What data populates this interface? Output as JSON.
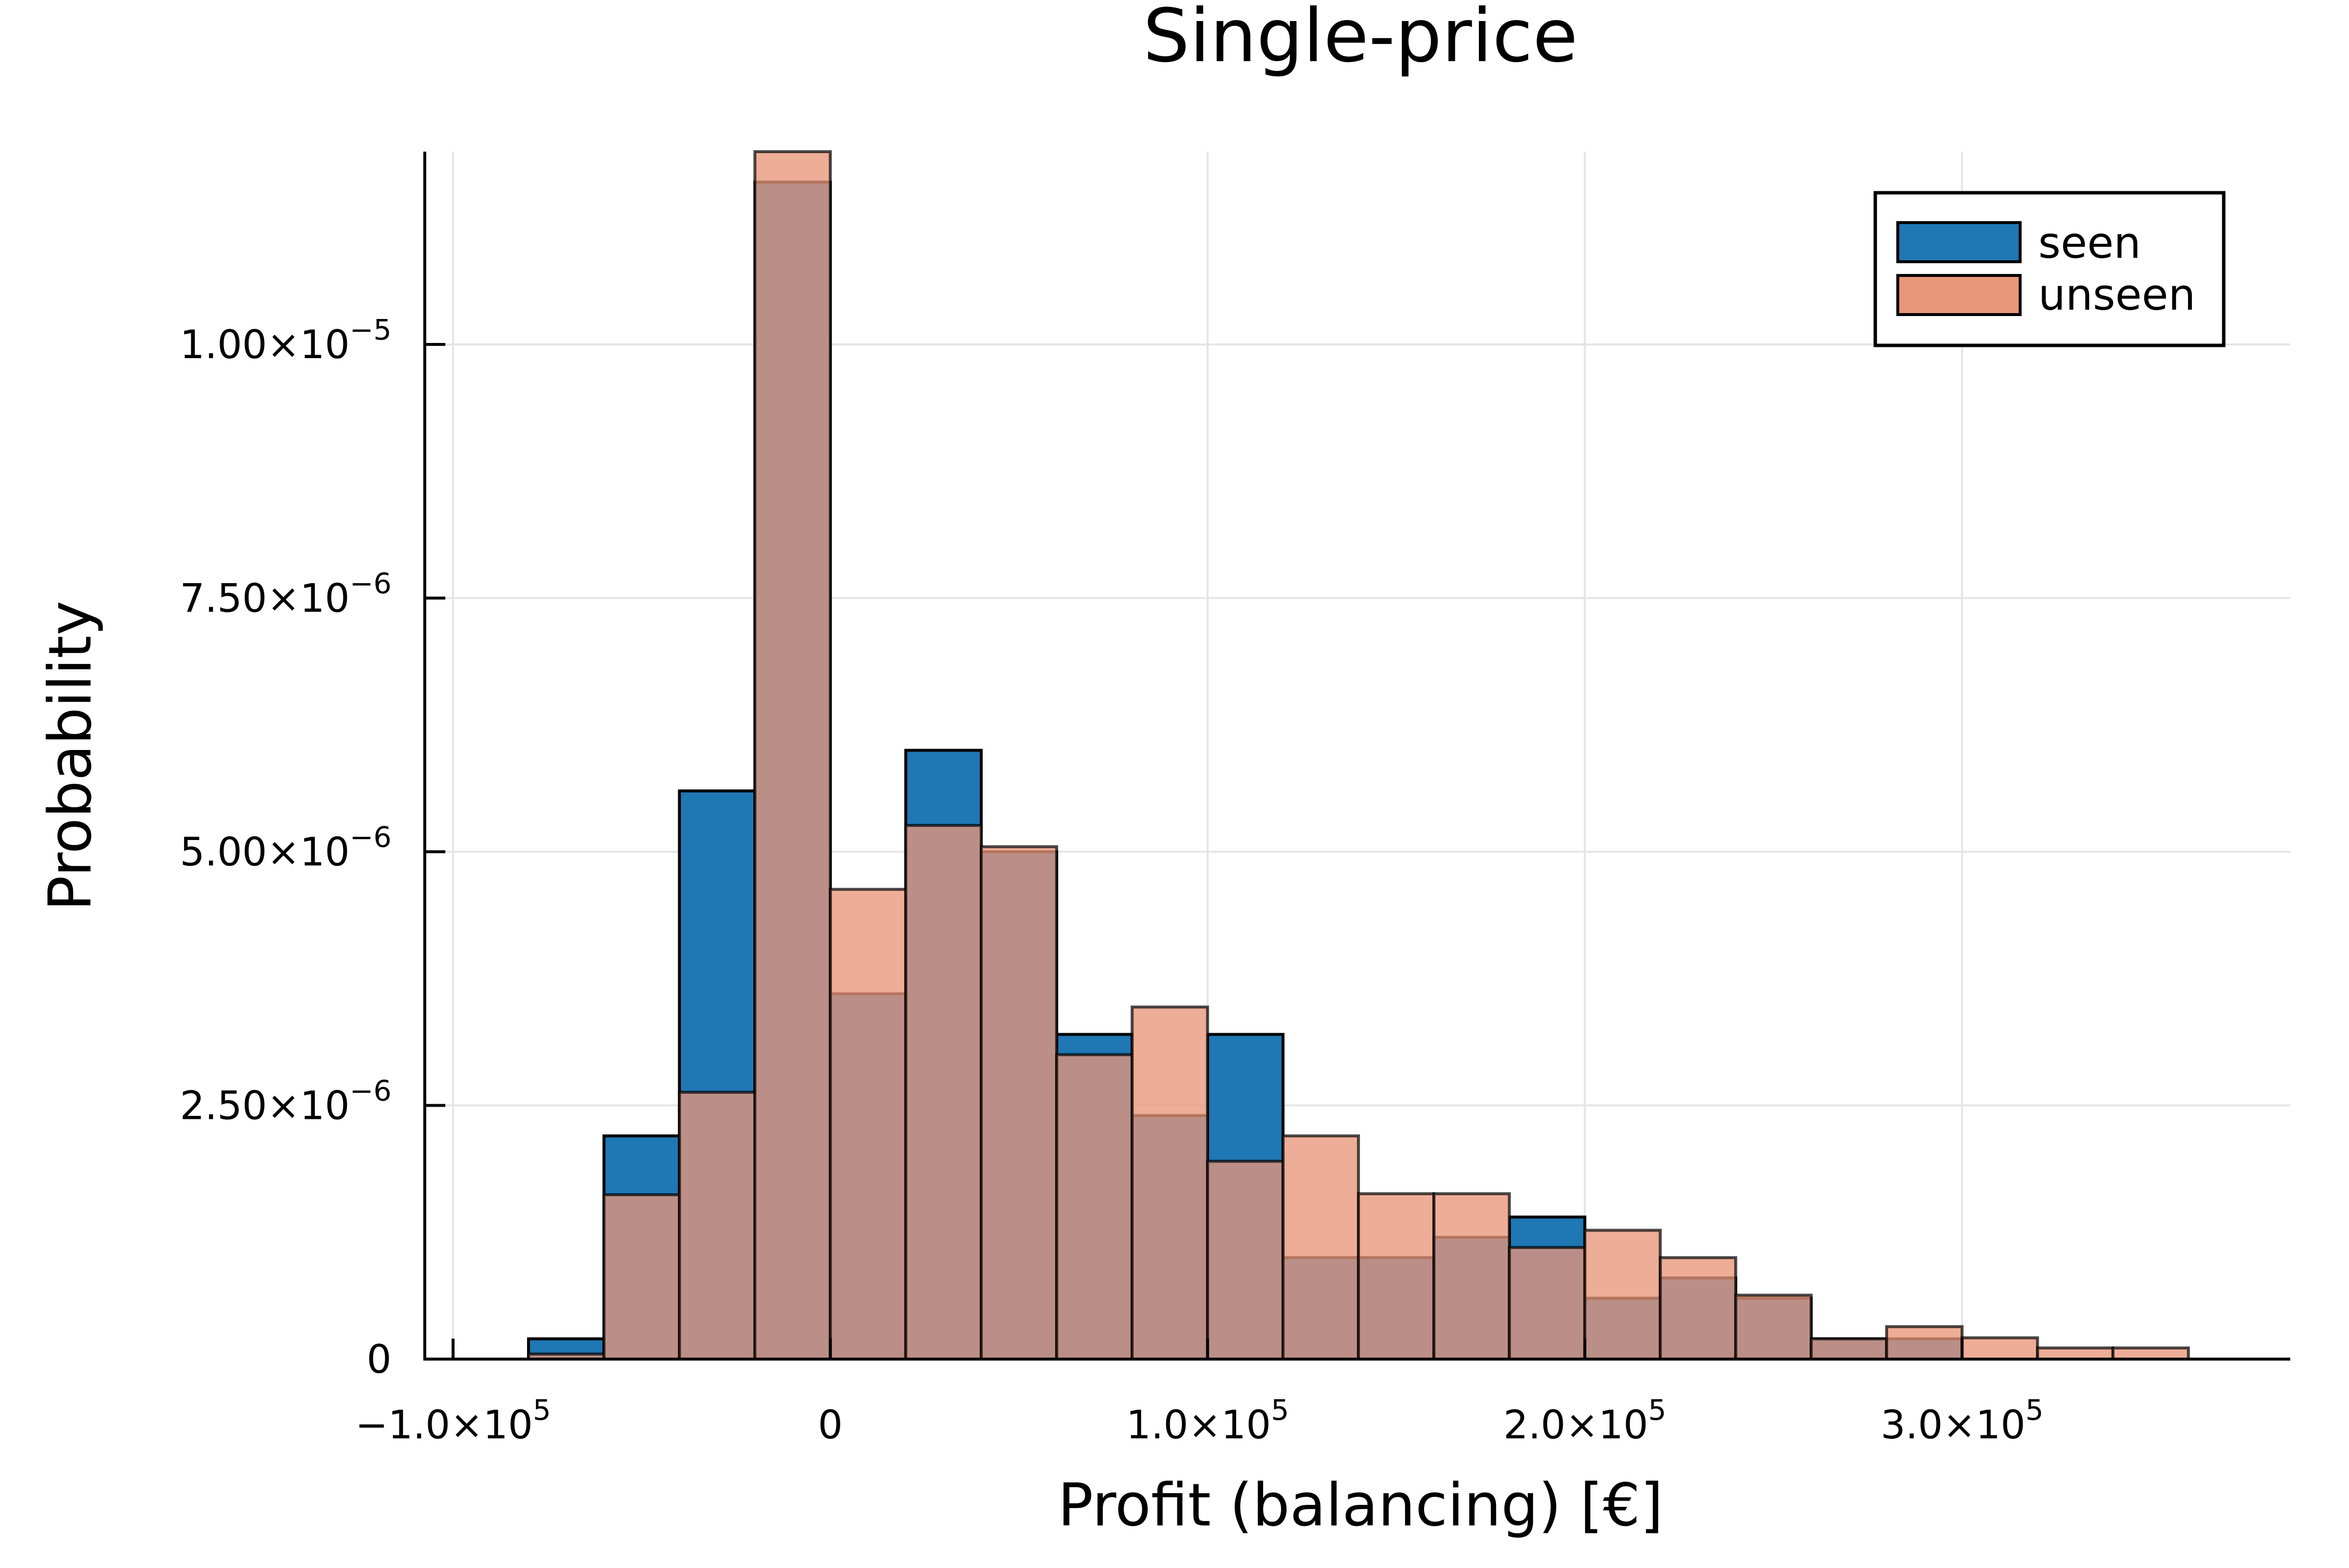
{
  "chart_data": {
    "type": "bar",
    "title": "Single-price",
    "xlabel": "Profit (balancing) [€]",
    "ylabel": "Probability",
    "xlim": [
      -107500,
      387000
    ],
    "ylim": [
      0,
      1.19e-05
    ],
    "grid": true,
    "legend_position": "top-right",
    "bin_edges": [
      -80000,
      -60000,
      -40000,
      -20000,
      0,
      20000,
      40000,
      60000,
      80000,
      100000,
      120000,
      140000,
      160000,
      180000,
      200000,
      220000,
      240000,
      260000,
      280000,
      300000,
      320000,
      340000,
      360000
    ],
    "series": [
      {
        "name": "seen",
        "color": "#1f77b4",
        "values": [
          2e-07,
          2.2e-06,
          5.6e-06,
          1.16e-05,
          3.6e-06,
          6e-06,
          5e-06,
          3.2e-06,
          2.4e-06,
          3.2e-06,
          1e-06,
          1e-06,
          1.2e-06,
          1.4e-06,
          6e-07,
          8e-07,
          6e-07,
          2e-07,
          2e-07,
          0,
          0,
          0
        ]
      },
      {
        "name": "unseen",
        "color": "#e8967a",
        "values": [
          5e-08,
          1.62e-06,
          2.63e-06,
          1.19e-05,
          4.63e-06,
          5.26e-06,
          5.05e-06,
          3e-06,
          3.47e-06,
          1.95e-06,
          2.2e-06,
          1.63e-06,
          1.63e-06,
          1.1e-06,
          1.27e-06,
          1e-06,
          6.3e-07,
          2e-07,
          3.2e-07,
          2.1e-07,
          1.1e-07,
          1.1e-07
        ]
      }
    ],
    "overlap_color": "#a0706a",
    "x_ticks": [
      {
        "value": -100000,
        "mantissa": "−1.0×10",
        "exp": "5"
      },
      {
        "value": 0,
        "mantissa": "0",
        "exp": ""
      },
      {
        "value": 100000,
        "mantissa": "1.0×10",
        "exp": "5"
      },
      {
        "value": 200000,
        "mantissa": "2.0×10",
        "exp": "5"
      },
      {
        "value": 300000,
        "mantissa": "3.0×10",
        "exp": "5"
      }
    ],
    "y_ticks": [
      {
        "value": 0,
        "mantissa": "0",
        "exp": ""
      },
      {
        "value": 2.5e-06,
        "mantissa": "2.50×10",
        "exp": "−6"
      },
      {
        "value": 5e-06,
        "mantissa": "5.00×10",
        "exp": "−6"
      },
      {
        "value": 7.5e-06,
        "mantissa": "7.50×10",
        "exp": "−6"
      },
      {
        "value": 1e-05,
        "mantissa": "1.00×10",
        "exp": "−5"
      }
    ]
  }
}
